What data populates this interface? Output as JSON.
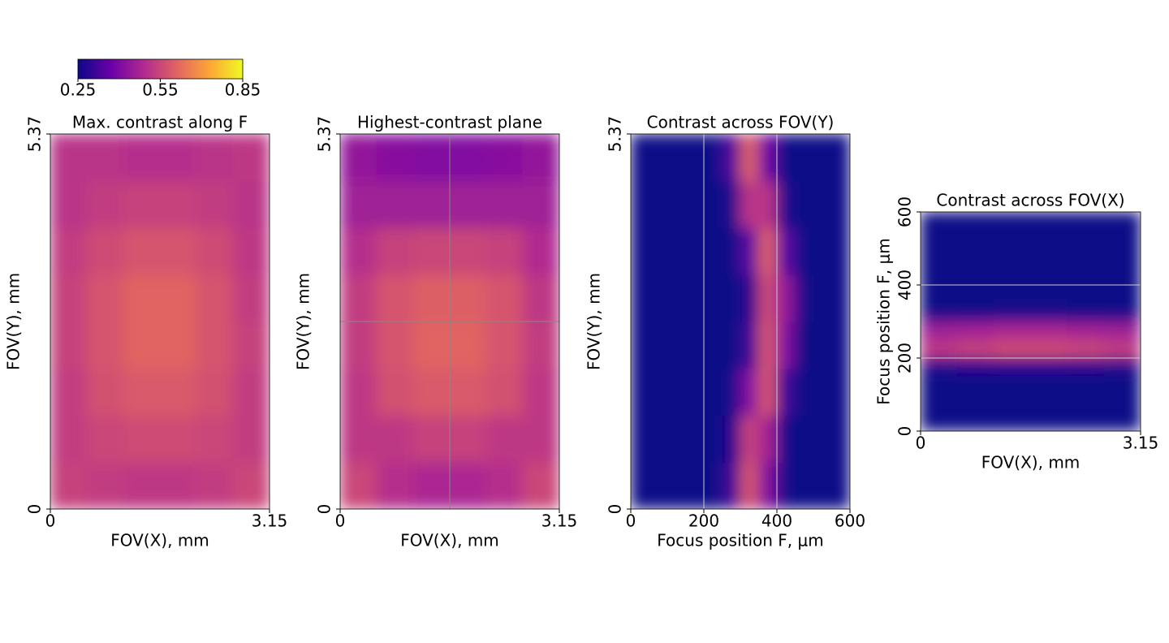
{
  "colorbar": {
    "clim": [
      0.25,
      0.85
    ],
    "ticks": [
      0.25,
      0.55,
      0.85
    ],
    "colors": [
      "#0d0887",
      "#6a00a8",
      "#b12a90",
      "#e16462",
      "#fca636",
      "#f0f921"
    ]
  },
  "chart_data": [
    {
      "type": "heatmap",
      "title": "Max. contrast along F",
      "xlabel": "FOV(X), mm",
      "ylabel": "FOV(Y), mm",
      "xlim": [
        0,
        3.15
      ],
      "ylim": [
        0,
        5.37
      ],
      "xticks": [
        0,
        3.15
      ],
      "yticks": [
        0,
        5.37
      ],
      "vlines": [],
      "hlines": [],
      "line_color": "#888888",
      "z": [
        [
          0.54,
          0.53,
          0.52,
          0.52,
          0.53,
          0.55
        ],
        [
          0.53,
          0.55,
          0.56,
          0.56,
          0.55,
          0.53
        ],
        [
          0.53,
          0.57,
          0.59,
          0.59,
          0.57,
          0.53
        ],
        [
          0.54,
          0.58,
          0.61,
          0.61,
          0.58,
          0.54
        ],
        [
          0.54,
          0.58,
          0.61,
          0.61,
          0.58,
          0.53
        ],
        [
          0.53,
          0.56,
          0.58,
          0.58,
          0.56,
          0.52
        ],
        [
          0.51,
          0.53,
          0.54,
          0.54,
          0.53,
          0.51
        ],
        [
          0.51,
          0.51,
          0.5,
          0.5,
          0.51,
          0.52
        ]
      ]
    },
    {
      "type": "heatmap",
      "title": "Highest-contrast plane",
      "xlabel": "FOV(X), mm",
      "ylabel": "FOV(Y), mm",
      "xlim": [
        0,
        3.15
      ],
      "ylim": [
        0,
        5.37
      ],
      "xticks": [
        0,
        3.15
      ],
      "yticks": [
        0,
        5.37
      ],
      "vlines": [
        1.575
      ],
      "hlines": [
        2.685
      ],
      "line_color": "#888888",
      "z": [
        [
          0.55,
          0.5,
          0.48,
          0.48,
          0.5,
          0.55
        ],
        [
          0.52,
          0.52,
          0.54,
          0.54,
          0.52,
          0.52
        ],
        [
          0.52,
          0.57,
          0.59,
          0.59,
          0.57,
          0.52
        ],
        [
          0.53,
          0.58,
          0.61,
          0.61,
          0.58,
          0.53
        ],
        [
          0.53,
          0.58,
          0.6,
          0.6,
          0.58,
          0.52
        ],
        [
          0.5,
          0.54,
          0.55,
          0.55,
          0.54,
          0.49
        ],
        [
          0.46,
          0.46,
          0.46,
          0.46,
          0.46,
          0.46
        ],
        [
          0.44,
          0.42,
          0.41,
          0.41,
          0.42,
          0.44
        ]
      ]
    },
    {
      "type": "heatmap",
      "title": "Contrast across FOV(Y)",
      "xlabel": "Focus position F, μm",
      "ylabel": "FOV(Y), mm",
      "xlim": [
        0,
        600
      ],
      "ylim": [
        0,
        5.37
      ],
      "xticks": [
        0,
        200,
        400,
        600
      ],
      "yticks": [
        0,
        5.37
      ],
      "vlines": [
        200,
        400
      ],
      "hlines": [],
      "line_color": "#cccccc",
      "z": [
        [
          0.25,
          0.25,
          0.25,
          0.25,
          0.25,
          0.31,
          0.58,
          0.41,
          0.26,
          0.25,
          0.25,
          0.25
        ],
        [
          0.25,
          0.25,
          0.25,
          0.25,
          0.25,
          0.28,
          0.54,
          0.47,
          0.26,
          0.25,
          0.25,
          0.25
        ],
        [
          0.25,
          0.25,
          0.25,
          0.25,
          0.25,
          0.26,
          0.41,
          0.58,
          0.31,
          0.25,
          0.25,
          0.25
        ],
        [
          0.25,
          0.25,
          0.25,
          0.25,
          0.25,
          0.25,
          0.31,
          0.58,
          0.41,
          0.25,
          0.25,
          0.25
        ],
        [
          0.25,
          0.25,
          0.25,
          0.25,
          0.25,
          0.25,
          0.29,
          0.56,
          0.44,
          0.26,
          0.25,
          0.25
        ],
        [
          0.25,
          0.25,
          0.25,
          0.25,
          0.25,
          0.25,
          0.35,
          0.6,
          0.35,
          0.25,
          0.25,
          0.25
        ],
        [
          0.25,
          0.25,
          0.25,
          0.25,
          0.25,
          0.27,
          0.51,
          0.51,
          0.27,
          0.25,
          0.25,
          0.25
        ],
        [
          0.25,
          0.25,
          0.25,
          0.25,
          0.25,
          0.33,
          0.6,
          0.38,
          0.25,
          0.25,
          0.25,
          0.25
        ]
      ]
    },
    {
      "type": "heatmap",
      "title": "Contrast across FOV(X)",
      "xlabel": "FOV(X), mm",
      "ylabel": "Focus position F, μm",
      "xlim": [
        0,
        3.15
      ],
      "ylim": [
        0,
        600
      ],
      "xticks": [
        0,
        3.15
      ],
      "yticks": [
        0,
        200,
        400,
        600
      ],
      "vlines": [],
      "hlines": [
        200,
        400
      ],
      "line_color": "#cccccc",
      "z": [
        [
          0.25,
          0.25,
          0.25,
          0.25,
          0.25,
          0.25
        ],
        [
          0.25,
          0.25,
          0.25,
          0.25,
          0.25,
          0.25
        ],
        [
          0.25,
          0.25,
          0.25,
          0.25,
          0.25,
          0.25
        ],
        [
          0.27,
          0.28,
          0.28,
          0.28,
          0.28,
          0.27
        ],
        [
          0.52,
          0.54,
          0.56,
          0.56,
          0.55,
          0.53
        ],
        [
          0.46,
          0.47,
          0.48,
          0.48,
          0.47,
          0.46
        ],
        [
          0.26,
          0.26,
          0.27,
          0.27,
          0.26,
          0.26
        ],
        [
          0.25,
          0.25,
          0.25,
          0.25,
          0.25,
          0.25
        ],
        [
          0.25,
          0.25,
          0.25,
          0.25,
          0.25,
          0.25
        ],
        [
          0.25,
          0.25,
          0.25,
          0.25,
          0.25,
          0.25
        ],
        [
          0.25,
          0.25,
          0.25,
          0.25,
          0.25,
          0.25
        ],
        [
          0.25,
          0.25,
          0.25,
          0.25,
          0.25,
          0.25
        ]
      ]
    }
  ]
}
